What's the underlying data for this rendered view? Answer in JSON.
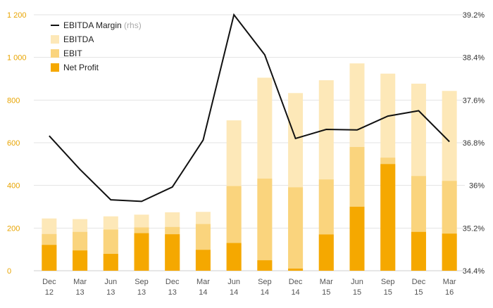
{
  "chart_data": {
    "type": "bar",
    "categories": [
      [
        "Dec",
        "12"
      ],
      [
        "Mar",
        "13"
      ],
      [
        "Jun",
        "13"
      ],
      [
        "Sep",
        "13"
      ],
      [
        "Dec",
        "13"
      ],
      [
        "Mar",
        "14"
      ],
      [
        "Jun",
        "14"
      ],
      [
        "Sep",
        "14"
      ],
      [
        "Dec",
        "14"
      ],
      [
        "Mar",
        "15"
      ],
      [
        "Jun",
        "15"
      ],
      [
        "Sep",
        "15"
      ],
      [
        "Dec",
        "15"
      ],
      [
        "Mar",
        "16"
      ]
    ],
    "series": [
      {
        "name": "EBITDA",
        "kind": "bar",
        "color": "#fde8b8",
        "values": [
          245,
          242,
          255,
          263,
          274,
          276,
          705,
          905,
          833,
          893,
          972,
          924,
          877,
          843
        ]
      },
      {
        "name": "EBIT",
        "kind": "bar",
        "color": "#fad47d",
        "values": [
          172,
          182,
          193,
          203,
          205,
          219,
          397,
          432,
          391,
          428,
          580,
          530,
          444,
          421
        ]
      },
      {
        "name": "Net Profit",
        "kind": "bar",
        "color": "#f5a800",
        "values": [
          121,
          95,
          79,
          176,
          171,
          98,
          130,
          49,
          10,
          170,
          300,
          500,
          182,
          174
        ]
      },
      {
        "name": "EBITDA Margin",
        "name_suffix": "(rhs)",
        "kind": "line",
        "axis": "right",
        "color": "#111111",
        "values": [
          36.93,
          36.3,
          35.73,
          35.7,
          35.97,
          36.85,
          39.2,
          38.45,
          36.88,
          37.05,
          37.04,
          37.3,
          37.4,
          36.82
        ]
      }
    ],
    "yaxis_left": {
      "ylim": [
        0,
        1200
      ],
      "ticks": [
        0,
        200,
        400,
        600,
        800,
        1000,
        1200
      ],
      "tick_labels": [
        "0",
        "200",
        "400",
        "600",
        "800",
        "1 000",
        "1 200"
      ]
    },
    "yaxis_right": {
      "ylim": [
        34.4,
        39.2
      ],
      "ticks": [
        34.4,
        35.2,
        36,
        36.8,
        37.6,
        38.4,
        39.2
      ],
      "tick_labels": [
        "34.4%",
        "35.2%",
        "36%",
        "36.8%",
        "37.6%",
        "38.4%",
        "39.2%"
      ]
    },
    "grid": true,
    "legend_position": "top-left",
    "legend_order": [
      "EBITDA Margin",
      "EBITDA",
      "EBIT",
      "Net Profit"
    ]
  }
}
